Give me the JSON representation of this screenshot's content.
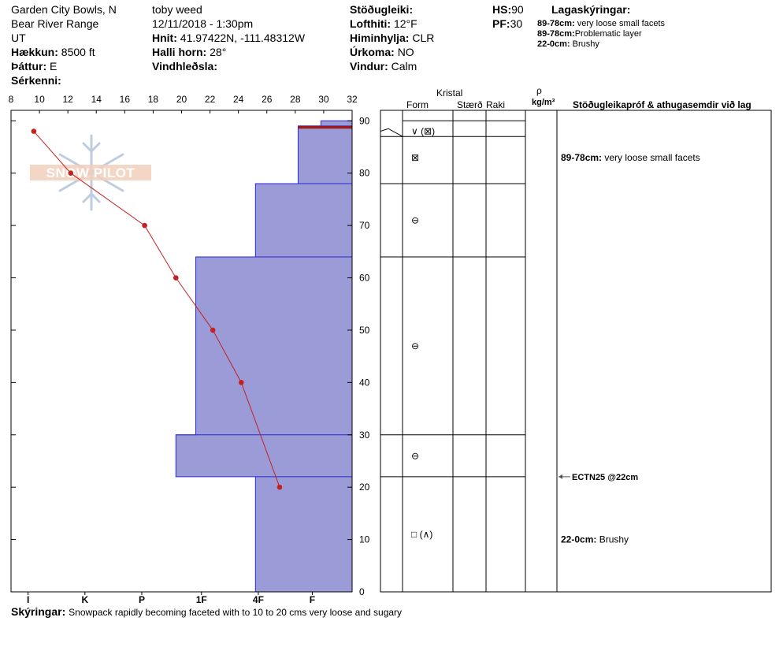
{
  "header": {
    "location": "Garden City Bowls, N",
    "range": "Bear River Range",
    "state": "UT",
    "observer": "toby weed",
    "datetime": "12/11/2018 - 1:30pm",
    "elevation_label": "Hækkun:",
    "elevation_value": "8500 ft",
    "aspect_label": "Þáttur:",
    "aspect_value": "E",
    "features_label": "Sérkenni:",
    "coords_label": "Hnit:",
    "coords_value": "41.97422N, -111.48312W",
    "slope_label": "Halli horn:",
    "slope_value": "28°",
    "wind_loading_label": "Vindhleðsla:",
    "stability_label": "Stöðugleiki:",
    "air_temp_label": "Lofthiti:",
    "air_temp_value": "12°F",
    "sky_label": "Himinhylja:",
    "sky_value": "CLR",
    "precip_label": "Úrkoma:",
    "precip_value": "NO",
    "wind_label": "Vindur:",
    "wind_value": "Calm",
    "hs_label": "HS:",
    "hs_value": "90",
    "pf_label": "PF:",
    "pf_value": "30"
  },
  "legend": {
    "title": "Lagaskýringar:",
    "items": [
      {
        "range": "89-78cm:",
        "text": "very loose small facets"
      },
      {
        "range": "89-78cm:",
        "text": "Problematic layer"
      },
      {
        "range": "22-0cm:",
        "text": "Brushy"
      }
    ]
  },
  "watermark": "SNOW PILOT",
  "columns": {
    "kristal": "Kristal",
    "form": "Form",
    "size": "Stærð",
    "moisture": "Raki",
    "rho": "ρ",
    "density_unit": "kg/m³",
    "comments": "Stöðugleikapróf & athugasemdir við lag"
  },
  "layer_notes": [
    {
      "depth": 83,
      "range": "89-78cm:",
      "text": "very loose small facets"
    },
    {
      "depth": 10,
      "range": "22-0cm:",
      "text": "Brushy"
    }
  ],
  "test_result": {
    "depth": 22,
    "text": "ECTN25 @22cm"
  },
  "footer": {
    "label": "Skýringar:",
    "text": "Snowpack rapidly becoming faceted with to 10 to 20 cms very loose and sugary"
  },
  "grain_forms": [
    {
      "depth": 88,
      "symbol": "∨ (⊠)"
    },
    {
      "depth": 83,
      "symbol": "⊠"
    },
    {
      "depth": 71,
      "symbol": "⊖"
    },
    {
      "depth": 47,
      "symbol": "⊖"
    },
    {
      "depth": 26,
      "symbol": "⊖"
    },
    {
      "depth": 11,
      "symbol": "□ (∧)"
    }
  ],
  "chart_data": {
    "type": "area",
    "temp_axis": {
      "range": [
        8,
        32
      ],
      "ticks": [
        8,
        10,
        12,
        14,
        16,
        18,
        20,
        22,
        24,
        26,
        28,
        30,
        32
      ],
      "unit": "°F"
    },
    "depth_axis": {
      "range": [
        0,
        92
      ],
      "ticks": [
        0,
        10,
        20,
        30,
        40,
        50,
        60,
        70,
        80,
        90
      ],
      "unit": "cm"
    },
    "hardness_axis": {
      "labels": [
        "I",
        "K",
        "P",
        "1F",
        "4F",
        "F"
      ],
      "positions": [
        9.2,
        13.2,
        17.2,
        21.4,
        25.4,
        29.2
      ]
    },
    "temperature_profile": {
      "depth": [
        88,
        80,
        70,
        60,
        50,
        40,
        20
      ],
      "temp": [
        9.6,
        12.2,
        17.4,
        19.6,
        22.2,
        24.2,
        26.9
      ]
    },
    "hardness_layers": [
      {
        "top": 90,
        "bottom": 89,
        "hardness_left": 29.8
      },
      {
        "top": 89,
        "bottom": 78,
        "hardness_left": 28.2
      },
      {
        "top": 78,
        "bottom": 64,
        "hardness_left": 25.2
      },
      {
        "top": 64,
        "bottom": 30,
        "hardness_left": 21.0
      },
      {
        "top": 30,
        "bottom": 22,
        "hardness_left": 19.6
      },
      {
        "top": 22,
        "bottom": 0,
        "hardness_left": 25.2
      }
    ],
    "layer_boundaries": [
      90,
      87,
      78,
      64,
      30,
      22
    ],
    "problematic_layer": {
      "top": 89,
      "bottom": 88.5
    },
    "colors": {
      "hardness_fill": "#9b9bd8",
      "hardness_edge": "#2a2ad0",
      "temp_line": "#c42121",
      "problem": "#a01818"
    }
  }
}
